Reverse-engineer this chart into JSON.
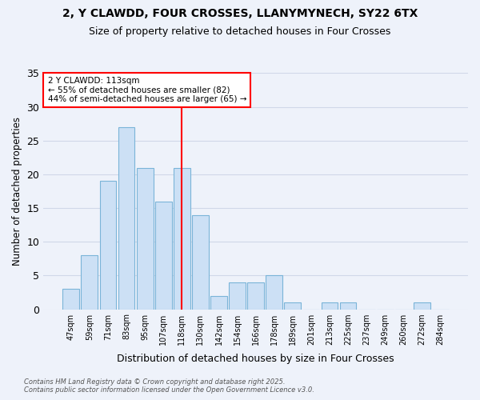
{
  "title_line1": "2, Y CLAWDD, FOUR CROSSES, LLANYMYNECH, SY22 6TX",
  "title_line2": "Size of property relative to detached houses in Four Crosses",
  "xlabel": "Distribution of detached houses by size in Four Crosses",
  "ylabel": "Number of detached properties",
  "bar_labels": [
    "47sqm",
    "59sqm",
    "71sqm",
    "83sqm",
    "95sqm",
    "107sqm",
    "118sqm",
    "130sqm",
    "142sqm",
    "154sqm",
    "166sqm",
    "178sqm",
    "189sqm",
    "201sqm",
    "213sqm",
    "225sqm",
    "237sqm",
    "249sqm",
    "260sqm",
    "272sqm",
    "284sqm"
  ],
  "bar_values": [
    3,
    8,
    19,
    27,
    21,
    16,
    21,
    14,
    2,
    4,
    4,
    5,
    1,
    0,
    1,
    1,
    0,
    0,
    0,
    1,
    0
  ],
  "bar_color": "#cce0f5",
  "bar_edgecolor": "#7ab4d8",
  "vline_x": 6.0,
  "vline_color": "red",
  "ylim": [
    0,
    35
  ],
  "yticks": [
    0,
    5,
    10,
    15,
    20,
    25,
    30,
    35
  ],
  "annotation_title": "2 Y CLAWDD: 113sqm",
  "annotation_line2": "← 55% of detached houses are smaller (82)",
  "annotation_line3": "44% of semi-detached houses are larger (65) →",
  "annotation_box_color": "#ffffff",
  "annotation_box_edgecolor": "red",
  "footer_line1": "Contains HM Land Registry data © Crown copyright and database right 2025.",
  "footer_line2": "Contains public sector information licensed under the Open Government Licence v3.0.",
  "background_color": "#eef2fa",
  "grid_color": "#d0d8e8",
  "title_fontsize": 10,
  "subtitle_fontsize": 9
}
